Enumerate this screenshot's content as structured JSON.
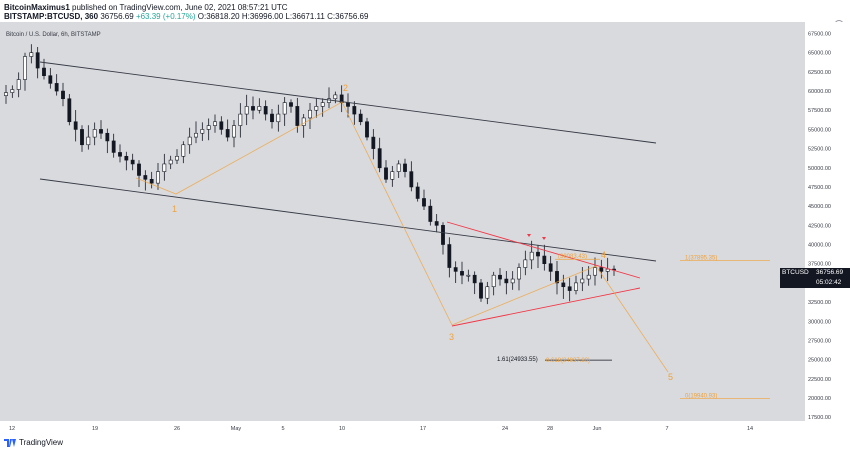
{
  "header": {
    "author": "BitcoinMaximus1",
    "published": "published on TradingView.com, June 02, 2021 08:57:21 UTC",
    "symbol": "BITSTAMP:BTCUSD, 360",
    "last": "36756.69",
    "change": "+63.39 (+0.17%)",
    "ohlc": "O:36818.20 H:36996.00 L:36671.11 C:36756.69"
  },
  "chart_title": "Bitcoin / U.S. Dollar, 6h, BITSTAMP",
  "footer": {
    "brand": "TradingView"
  },
  "price_badge": {
    "symbol": "BTCUSD",
    "price": "36756.69",
    "countdown": "05:02:42"
  },
  "colors": {
    "plot_bg": "#d9dade",
    "candle": "#131722",
    "wave": "#f0a23b",
    "triangle": "#f23645",
    "channel": "#363a45"
  },
  "chart_data": {
    "type": "candlestick",
    "x_tick_labels": [
      "12",
      "19",
      "26",
      "May",
      "5",
      "10",
      "17",
      "24",
      "28",
      "Jun",
      "7",
      "14"
    ],
    "y_tick_labels": [
      "67500.00",
      "65000.00",
      "62500.00",
      "60000.00",
      "57500.00",
      "55000.00",
      "52500.00",
      "50000.00",
      "47500.00",
      "45000.00",
      "42500.00",
      "40000.00",
      "37500.00",
      "35000.00",
      "32500.00",
      "30000.00",
      "27500.00",
      "25000.00",
      "22500.00",
      "20000.00",
      "17500.00"
    ],
    "ylim": [
      17000,
      69000
    ],
    "close_series": [
      59800,
      60200,
      61500,
      64500,
      65000,
      63000,
      62000,
      61000,
      60000,
      59000,
      56000,
      55000,
      53000,
      54000,
      55000,
      54500,
      53500,
      52000,
      51500,
      51000,
      50500,
      49000,
      48500,
      48000,
      49500,
      50500,
      51000,
      51500,
      53000,
      54000,
      54500,
      55000,
      55500,
      56000,
      55000,
      54000,
      55500,
      57000,
      58000,
      57500,
      58000,
      57000,
      56000,
      57000,
      58500,
      58000,
      55500,
      56500,
      57500,
      58000,
      58500,
      59000,
      59500,
      58500,
      58000,
      57000,
      56000,
      54000,
      52500,
      50000,
      48500,
      49500,
      50500,
      49500,
      47500,
      46000,
      45000,
      43000,
      42500,
      40000,
      37000,
      36500,
      36000,
      36000,
      35000,
      33000,
      34500,
      36000,
      35500,
      35000,
      35500,
      37000,
      38000,
      39000,
      38500,
      37500,
      36500,
      35000,
      34500,
      34000,
      35000,
      35500,
      36000,
      37000,
      36500,
      36800,
      36756
    ],
    "wave_labels": [
      "1",
      "2",
      "3",
      "4",
      "5"
    ],
    "fib_levels": [
      {
        "label": "1(37895.35)",
        "value": 37895.35
      },
      {
        "label": "(38083.43)",
        "value": 38083.43
      },
      {
        "label": "1.61(24933.55)",
        "value": 24933.55
      },
      {
        "label": "0.618(24937.80)",
        "value": 24937.8
      },
      {
        "label": "0(19940.93)",
        "value": 19940.93
      }
    ]
  }
}
